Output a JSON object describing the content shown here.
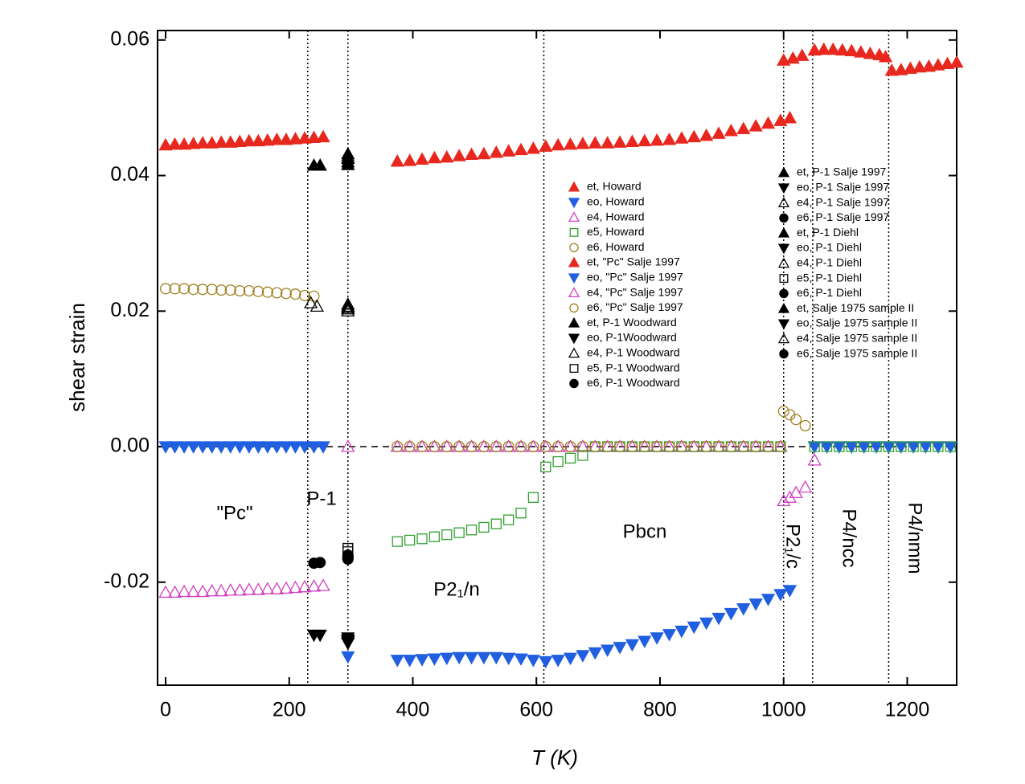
{
  "chart_data": {
    "type": "scatter",
    "x_label": "T (K)",
    "y_label": "shear strain",
    "xlim": [
      -13,
      1280
    ],
    "ylim": [
      -0.0352,
      0.0614
    ],
    "xticks": [
      0,
      200,
      400,
      600,
      800,
      1000,
      1200
    ],
    "yticks": [
      0.06,
      0.04,
      0.02,
      {
        "value": 0,
        "label": "0.00"
      },
      -0.02
    ],
    "reference_line": 0,
    "phase_boundaries": [
      230,
      295,
      612,
      1000,
      1047,
      1170
    ],
    "annotations": [
      "\"Pc\"",
      "P-1",
      "P2₁/n",
      "Pbcn",
      "P2₁/c",
      "P4/ncc",
      "P4/nmm"
    ],
    "series": [
      {
        "name": "et, Howard",
        "color": "#e8281e",
        "marker": "triangle-up",
        "filled": true,
        "x": [
          375,
          395,
          415,
          435,
          455,
          475,
          495,
          515,
          535,
          555,
          575,
          595,
          615,
          635,
          655,
          675,
          695,
          715,
          735,
          755,
          775,
          795,
          815,
          835,
          855,
          875,
          895,
          915,
          935,
          955,
          975,
          995,
          1010,
          1000,
          1015,
          1030,
          1050,
          1065,
          1080,
          1095,
          1110,
          1125,
          1140,
          1155,
          1165,
          1175,
          1190,
          1205,
          1220,
          1235,
          1250,
          1265,
          1280
        ],
        "values": [
          0.0421,
          0.0422,
          0.0424,
          0.0426,
          0.0427,
          0.0429,
          0.0431,
          0.0432,
          0.0434,
          0.0436,
          0.0438,
          0.044,
          0.0443,
          0.0445,
          0.0446,
          0.0447,
          0.0448,
          0.0448,
          0.0449,
          0.045,
          0.0451,
          0.0452,
          0.0453,
          0.0455,
          0.0457,
          0.0459,
          0.0462,
          0.0466,
          0.0469,
          0.0473,
          0.0477,
          0.0481,
          0.0485,
          0.057,
          0.0573,
          0.0577,
          0.0585,
          0.0586,
          0.0586,
          0.0585,
          0.0584,
          0.0582,
          0.058,
          0.0578,
          0.0575,
          0.0555,
          0.0556,
          0.0558,
          0.056,
          0.0561,
          0.0563,
          0.0565,
          0.0567
        ]
      },
      {
        "name": "eo, Howard",
        "color": "#1f5fe0",
        "marker": "triangle-down",
        "filled": true,
        "x": [
          295,
          375,
          395,
          415,
          435,
          455,
          475,
          495,
          515,
          535,
          555,
          575,
          595,
          615,
          635,
          655,
          675,
          695,
          715,
          735,
          755,
          775,
          795,
          815,
          835,
          855,
          875,
          895,
          915,
          935,
          955,
          975,
          995,
          1010,
          1050,
          1070,
          1090,
          1110,
          1130,
          1150,
          1170,
          1190,
          1210,
          1230,
          1250,
          1270
        ],
        "values": [
          -0.031,
          -0.0315,
          -0.0315,
          -0.0314,
          -0.0313,
          -0.0312,
          -0.0311,
          -0.0311,
          -0.0311,
          -0.0311,
          -0.0312,
          -0.0313,
          -0.0315,
          -0.0317,
          -0.0315,
          -0.0312,
          -0.0308,
          -0.0304,
          -0.03,
          -0.0296,
          -0.0292,
          -0.0287,
          -0.0282,
          -0.0277,
          -0.0272,
          -0.0266,
          -0.026,
          -0.0253,
          -0.0246,
          -0.0239,
          -0.0232,
          -0.0225,
          -0.0218,
          -0.0212,
          0,
          0,
          0,
          0,
          0,
          0,
          0,
          0,
          0,
          0,
          0,
          0
        ]
      },
      {
        "name": "e4, Howard",
        "color": "#d040c0",
        "marker": "triangle-up",
        "filled": false,
        "x": [
          295,
          375,
          395,
          415,
          435,
          455,
          475,
          495,
          515,
          535,
          555,
          575,
          595,
          615,
          635,
          655,
          675,
          695,
          715,
          735,
          755,
          775,
          795,
          815,
          835,
          855,
          875,
          895,
          915,
          935,
          955,
          975,
          995,
          1000,
          1010,
          1020,
          1035,
          1050
        ],
        "values": [
          0,
          0,
          0,
          0,
          0,
          0,
          0,
          0,
          0,
          0,
          0,
          0,
          0,
          0,
          0,
          0,
          0,
          0,
          0,
          0,
          0,
          0,
          0,
          0,
          0,
          0,
          0,
          0,
          0,
          0,
          0,
          0,
          0,
          -0.008,
          -0.0075,
          -0.0068,
          -0.006,
          -0.002
        ]
      },
      {
        "name": "e5, Howard",
        "color": "#30a030",
        "marker": "square",
        "filled": false,
        "x": [
          295,
          375,
          395,
          415,
          435,
          455,
          475,
          495,
          515,
          535,
          555,
          575,
          595,
          615,
          635,
          655,
          675,
          695,
          715,
          735,
          755,
          775,
          795,
          815,
          835,
          855,
          875,
          895,
          915,
          935,
          955,
          975,
          995,
          1050,
          1070,
          1090,
          1110,
          1130,
          1150,
          1170,
          1190,
          1210,
          1230,
          1250,
          1270
        ],
        "values": [
          -0.015,
          -0.014,
          -0.0138,
          -0.0136,
          -0.0133,
          -0.013,
          -0.0127,
          -0.0123,
          -0.0119,
          -0.0114,
          -0.0108,
          -0.0098,
          -0.0075,
          -0.003,
          -0.0022,
          -0.0017,
          -0.0013,
          0,
          0,
          0,
          0,
          0,
          0,
          0,
          0,
          0,
          0,
          0,
          0,
          0,
          0,
          0,
          0,
          0,
          0,
          0,
          0,
          0,
          0,
          0,
          0,
          0,
          0,
          0,
          0
        ]
      },
      {
        "name": "e6, Howard",
        "color": "#a08020",
        "marker": "circle",
        "filled": false,
        "x": [
          375,
          395,
          415,
          435,
          455,
          475,
          495,
          515,
          535,
          555,
          575,
          595,
          615,
          635,
          655,
          675,
          695,
          715,
          735,
          755,
          775,
          795,
          815,
          835,
          855,
          875,
          895,
          915,
          935,
          955,
          975,
          995,
          1000,
          1010,
          1020,
          1035
        ],
        "values": [
          0,
          0,
          0,
          0,
          0,
          0,
          0,
          0,
          0,
          0,
          0,
          0,
          0,
          0,
          0,
          0,
          0,
          0,
          0,
          0,
          0,
          0,
          0,
          0,
          0,
          0,
          0,
          0,
          0,
          0,
          0,
          0,
          0.0052,
          0.0047,
          0.004,
          0.0031
        ]
      },
      {
        "name": "et, \"Pc\" Salje 1997",
        "color": "#e8281e",
        "marker": "triangle-up",
        "filled": true,
        "x": [
          0,
          15,
          30,
          45,
          60,
          75,
          90,
          105,
          120,
          135,
          150,
          165,
          180,
          195,
          210,
          225,
          240,
          255
        ],
        "values": [
          0.0445,
          0.0446,
          0.0446,
          0.0447,
          0.0448,
          0.0448,
          0.0449,
          0.0449,
          0.045,
          0.0451,
          0.0451,
          0.0452,
          0.0453,
          0.0453,
          0.0454,
          0.0455,
          0.0456,
          0.0457
        ]
      },
      {
        "name": "eo, \"Pc\" Salje 1997",
        "color": "#1f5fe0",
        "marker": "triangle-down",
        "filled": true,
        "x": [
          0,
          15,
          30,
          45,
          60,
          75,
          90,
          105,
          120,
          135,
          150,
          165,
          180,
          195,
          210,
          225,
          240,
          255
        ],
        "values": [
          0,
          0,
          0,
          0,
          0,
          0,
          0,
          0,
          0,
          0,
          0,
          0,
          0,
          0,
          0,
          0,
          0,
          0
        ]
      },
      {
        "name": "e4, \"Pc\" Salje 1997",
        "color": "#d040c0",
        "marker": "triangle-up",
        "filled": false,
        "x": [
          0,
          15,
          30,
          45,
          60,
          75,
          90,
          105,
          120,
          135,
          150,
          165,
          180,
          195,
          210,
          225,
          240,
          255
        ],
        "values": [
          -0.0215,
          -0.0215,
          -0.0214,
          -0.0214,
          -0.0214,
          -0.0213,
          -0.0213,
          -0.0212,
          -0.0212,
          -0.0211,
          -0.0211,
          -0.021,
          -0.021,
          -0.0209,
          -0.0208,
          -0.0207,
          -0.0206,
          -0.0205
        ]
      },
      {
        "name": "e6, \"Pc\" Salje 1997",
        "color": "#a08020",
        "marker": "circle",
        "filled": false,
        "x": [
          0,
          15,
          30,
          45,
          60,
          75,
          90,
          105,
          120,
          135,
          150,
          165,
          180,
          195,
          210,
          225,
          240
        ],
        "values": [
          0.0233,
          0.0233,
          0.0233,
          0.0232,
          0.0232,
          0.0232,
          0.0231,
          0.0231,
          0.023,
          0.023,
          0.0229,
          0.0228,
          0.0227,
          0.0226,
          0.0225,
          0.0223,
          0.0222
        ]
      },
      {
        "name": "et, P-1 Woodward",
        "color": "#000000",
        "marker": "triangle-up",
        "filled": true,
        "x": [
          240,
          250,
          295,
          295
        ],
        "values": [
          0.0415,
          0.0415,
          0.0432,
          0.042
        ]
      },
      {
        "name": "eo, P-1Woodward",
        "color": "#000000",
        "marker": "triangle-down",
        "filled": true,
        "x": [
          240,
          250,
          295,
          295
        ],
        "values": [
          -0.0278,
          -0.0278,
          -0.0285,
          -0.029
        ]
      },
      {
        "name": "e4, P-1 Woodward",
        "color": "#000000",
        "marker": "triangle-up",
        "filled": false,
        "x": [
          235,
          245,
          295,
          295
        ],
        "values": [
          0.0212,
          0.0207,
          0.0207,
          0.02
        ]
      },
      {
        "name": "e5, P-1 Woodward",
        "color": "#000000",
        "marker": "square",
        "filled": false,
        "x": [
          295
        ],
        "values": [
          -0.015
        ]
      },
      {
        "name": "e6, P-1 Woodward",
        "color": "#000000",
        "marker": "circle",
        "filled": true,
        "x": [
          240,
          250,
          295,
          295
        ],
        "values": [
          -0.0172,
          -0.0171,
          -0.016,
          -0.0165
        ]
      },
      {
        "name": "et, P-1 Salje 1997",
        "color": "#000000",
        "marker": "triangle-up",
        "filled": true,
        "x": [
          295
        ],
        "values": [
          0.0425
        ]
      },
      {
        "name": "eo, P-1 Salje 1997",
        "color": "#000000",
        "marker": "triangle-down",
        "filled": true,
        "x": [
          295
        ],
        "values": [
          -0.0288
        ]
      },
      {
        "name": "e4, P-1 Salje 1997",
        "color": "#000000",
        "marker": "triangle-up",
        "filled": false,
        "x": [
          295
        ],
        "values": [
          0.0203
        ]
      },
      {
        "name": "e6, P-1 Salje 1997",
        "color": "#000000",
        "marker": "circle",
        "filled": true,
        "x": [
          295
        ],
        "values": [
          -0.0163
        ]
      },
      {
        "name": "et, P-1 Diehl",
        "color": "#000000",
        "marker": "triangle-up",
        "filled": true,
        "x": [
          295
        ],
        "values": [
          0.0428
        ]
      },
      {
        "name": "eo, P-1 Diehl",
        "color": "#000000",
        "marker": "triangle-down",
        "filled": true,
        "x": [
          295
        ],
        "values": [
          -0.0286
        ]
      },
      {
        "name": "e4, P-1 Diehl",
        "color": "#000000",
        "marker": "triangle-up",
        "filled": false,
        "x": [
          295
        ],
        "values": [
          0.0205
        ]
      },
      {
        "name": "e5, P-1 Diehl",
        "color": "#000000",
        "marker": "square",
        "filled": false,
        "x": [
          295
        ],
        "values": [
          -0.0155
        ]
      },
      {
        "name": "e6, P-1 Diehl",
        "color": "#000000",
        "marker": "circle",
        "filled": true,
        "x": [
          295
        ],
        "values": [
          -0.0161
        ]
      },
      {
        "name": "et, Salje 1975 sample II",
        "color": "#000000",
        "marker": "triangle-up",
        "filled": true,
        "x": [
          295
        ],
        "values": [
          0.0416
        ]
      },
      {
        "name": "eo, Salje 1975 sample II",
        "color": "#000000",
        "marker": "triangle-down",
        "filled": true,
        "x": [
          295
        ],
        "values": [
          -0.0282
        ]
      },
      {
        "name": "e4, Salje 1975 sample II",
        "color": "#000000",
        "marker": "triangle-up",
        "filled": false,
        "x": [
          295
        ],
        "values": [
          0.021
        ]
      },
      {
        "name": "e6, Salje 1975 sample II",
        "color": "#000000",
        "marker": "circle",
        "filled": true,
        "x": [
          295
        ],
        "values": [
          -0.0166
        ]
      }
    ]
  }
}
